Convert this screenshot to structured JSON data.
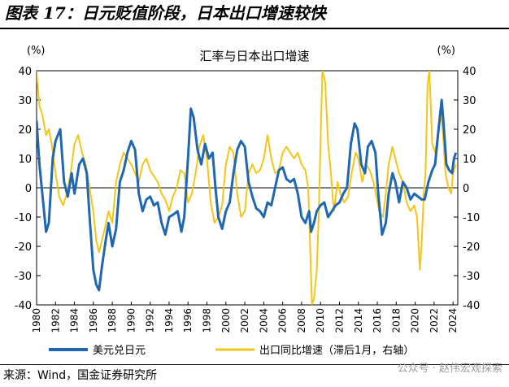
{
  "figure_title": "图表 17：日元贬值阶段，日本出口增速较快",
  "source": "来源：Wind，国金证券研究所",
  "watermark": "公众号 · 赵伟宏观探索",
  "chart_data": {
    "type": "line",
    "title": "汇率与日本出口增速",
    "y_left_unit": "(%)",
    "y_right_unit": "(%)",
    "ylim": [
      -40,
      40
    ],
    "yticks": [
      -40,
      -30,
      -20,
      -10,
      0,
      10,
      20,
      30,
      40
    ],
    "xlim": [
      1980,
      2024.5
    ],
    "xticks": [
      "1980",
      "1982",
      "1984",
      "1986",
      "1988",
      "1990",
      "1992",
      "1994",
      "1996",
      "1998",
      "2000",
      "2002",
      "2004",
      "2006",
      "2008",
      "2010",
      "2012",
      "2014",
      "2016",
      "2018",
      "2020",
      "2022",
      "2024"
    ],
    "legend_position": "bottom",
    "grid": false,
    "series": [
      {
        "name": "美元兑日元",
        "axis": "left",
        "color": "#1f66b3",
        "points": [
          [
            1980.0,
            23
          ],
          [
            1980.3,
            8
          ],
          [
            1980.7,
            -5
          ],
          [
            1981.0,
            -15
          ],
          [
            1981.3,
            -12
          ],
          [
            1981.7,
            10
          ],
          [
            1982.0,
            16
          ],
          [
            1982.5,
            20
          ],
          [
            1982.9,
            2
          ],
          [
            1983.3,
            -3
          ],
          [
            1983.7,
            5
          ],
          [
            1984.0,
            -2
          ],
          [
            1984.5,
            8
          ],
          [
            1984.9,
            10
          ],
          [
            1985.3,
            5
          ],
          [
            1985.6,
            -10
          ],
          [
            1986.0,
            -28
          ],
          [
            1986.3,
            -33
          ],
          [
            1986.6,
            -35
          ],
          [
            1986.9,
            -27
          ],
          [
            1987.3,
            -18
          ],
          [
            1987.6,
            -12
          ],
          [
            1988.0,
            -20
          ],
          [
            1988.4,
            -14
          ],
          [
            1988.8,
            2
          ],
          [
            1989.2,
            6
          ],
          [
            1989.6,
            12
          ],
          [
            1990.0,
            16
          ],
          [
            1990.4,
            13
          ],
          [
            1990.8,
            -2
          ],
          [
            1991.2,
            -8
          ],
          [
            1991.6,
            -4
          ],
          [
            1992.0,
            -3
          ],
          [
            1992.4,
            -6
          ],
          [
            1992.8,
            -5
          ],
          [
            1993.2,
            -12
          ],
          [
            1993.6,
            -16
          ],
          [
            1994.0,
            -10
          ],
          [
            1994.5,
            -9
          ],
          [
            1994.9,
            -8
          ],
          [
            1995.3,
            -15
          ],
          [
            1995.6,
            -10
          ],
          [
            1996.0,
            10
          ],
          [
            1996.3,
            27
          ],
          [
            1996.6,
            24
          ],
          [
            1997.0,
            13
          ],
          [
            1997.4,
            8
          ],
          [
            1997.8,
            15
          ],
          [
            1998.2,
            10
          ],
          [
            1998.6,
            12
          ],
          [
            1998.9,
            0
          ],
          [
            1999.2,
            -10
          ],
          [
            1999.6,
            -14
          ],
          [
            2000.0,
            -8
          ],
          [
            2000.4,
            -5
          ],
          [
            2000.8,
            5
          ],
          [
            2001.2,
            13
          ],
          [
            2001.6,
            16
          ],
          [
            2002.0,
            14
          ],
          [
            2002.4,
            2
          ],
          [
            2002.8,
            -3
          ],
          [
            2003.2,
            -7
          ],
          [
            2003.6,
            -8
          ],
          [
            2004.0,
            -10
          ],
          [
            2004.4,
            -5
          ],
          [
            2004.8,
            -6
          ],
          [
            2005.2,
            0
          ],
          [
            2005.6,
            6
          ],
          [
            2006.0,
            7
          ],
          [
            2006.4,
            3
          ],
          [
            2006.8,
            2
          ],
          [
            2007.2,
            3
          ],
          [
            2007.6,
            -2
          ],
          [
            2008.0,
            -10
          ],
          [
            2008.4,
            -12
          ],
          [
            2008.8,
            -8
          ],
          [
            2009.0,
            -15
          ],
          [
            2009.3,
            -12
          ],
          [
            2009.6,
            -8
          ],
          [
            2010.0,
            -6
          ],
          [
            2010.4,
            -5
          ],
          [
            2010.8,
            -10
          ],
          [
            2011.2,
            -8
          ],
          [
            2011.6,
            -6
          ],
          [
            2012.0,
            -5
          ],
          [
            2012.4,
            -2
          ],
          [
            2012.8,
            0
          ],
          [
            2013.2,
            15
          ],
          [
            2013.6,
            22
          ],
          [
            2013.9,
            20
          ],
          [
            2014.3,
            8
          ],
          [
            2014.7,
            5
          ],
          [
            2015.0,
            14
          ],
          [
            2015.4,
            16
          ],
          [
            2015.8,
            12
          ],
          [
            2016.1,
            -2
          ],
          [
            2016.5,
            -16
          ],
          [
            2016.9,
            -12
          ],
          [
            2017.2,
            -2
          ],
          [
            2017.6,
            5
          ],
          [
            2017.9,
            2
          ],
          [
            2018.3,
            -5
          ],
          [
            2018.7,
            2
          ],
          [
            2019.1,
            0
          ],
          [
            2019.5,
            -4
          ],
          [
            2019.9,
            -2
          ],
          [
            2020.3,
            -3
          ],
          [
            2020.7,
            -4
          ],
          [
            2021.0,
            -4
          ],
          [
            2021.4,
            2
          ],
          [
            2021.8,
            6
          ],
          [
            2022.1,
            8
          ],
          [
            2022.4,
            18
          ],
          [
            2022.8,
            30
          ],
          [
            2023.0,
            22
          ],
          [
            2023.3,
            8
          ],
          [
            2023.6,
            6
          ],
          [
            2023.9,
            5
          ],
          [
            2024.1,
            10
          ],
          [
            2024.3,
            12
          ]
        ]
      },
      {
        "name": "出口同比增速（滞后1月，右轴）",
        "axis": "right",
        "color": "#f5c518",
        "points": [
          [
            1980.0,
            40
          ],
          [
            1980.3,
            28
          ],
          [
            1980.6,
            25
          ],
          [
            1981.0,
            18
          ],
          [
            1981.3,
            20
          ],
          [
            1981.6,
            15
          ],
          [
            1982.0,
            5
          ],
          [
            1982.4,
            -3
          ],
          [
            1982.8,
            -6
          ],
          [
            1983.2,
            -2
          ],
          [
            1983.6,
            5
          ],
          [
            1984.0,
            15
          ],
          [
            1984.4,
            18
          ],
          [
            1984.8,
            12
          ],
          [
            1985.2,
            8
          ],
          [
            1985.6,
            0
          ],
          [
            1986.0,
            -8
          ],
          [
            1986.3,
            -18
          ],
          [
            1986.6,
            -22
          ],
          [
            1986.9,
            -18
          ],
          [
            1987.2,
            -14
          ],
          [
            1987.6,
            -8
          ],
          [
            1988.0,
            -12
          ],
          [
            1988.4,
            2
          ],
          [
            1988.8,
            8
          ],
          [
            1989.2,
            12
          ],
          [
            1989.6,
            10
          ],
          [
            1990.0,
            8
          ],
          [
            1990.4,
            5
          ],
          [
            1990.8,
            2
          ],
          [
            1991.2,
            8
          ],
          [
            1991.6,
            10
          ],
          [
            1992.0,
            6
          ],
          [
            1992.4,
            4
          ],
          [
            1992.8,
            2
          ],
          [
            1993.2,
            -2
          ],
          [
            1993.6,
            -4
          ],
          [
            1994.0,
            -8
          ],
          [
            1994.4,
            -3
          ],
          [
            1994.8,
            0
          ],
          [
            1995.2,
            6
          ],
          [
            1995.6,
            5
          ],
          [
            1996.0,
            -5
          ],
          [
            1996.4,
            -2
          ],
          [
            1996.8,
            5
          ],
          [
            1997.2,
            14
          ],
          [
            1997.6,
            18
          ],
          [
            1998.0,
            10
          ],
          [
            1998.4,
            -5
          ],
          [
            1998.8,
            -12
          ],
          [
            1999.2,
            -10
          ],
          [
            1999.6,
            -6
          ],
          [
            2000.0,
            8
          ],
          [
            2000.4,
            14
          ],
          [
            2000.8,
            12
          ],
          [
            2001.2,
            -2
          ],
          [
            2001.6,
            -10
          ],
          [
            2002.0,
            -8
          ],
          [
            2002.4,
            5
          ],
          [
            2002.8,
            8
          ],
          [
            2003.2,
            5
          ],
          [
            2003.6,
            6
          ],
          [
            2004.0,
            10
          ],
          [
            2004.4,
            18
          ],
          [
            2004.8,
            10
          ],
          [
            2005.2,
            5
          ],
          [
            2005.6,
            6
          ],
          [
            2006.0,
            12
          ],
          [
            2006.4,
            14
          ],
          [
            2006.8,
            12
          ],
          [
            2007.2,
            10
          ],
          [
            2007.6,
            12
          ],
          [
            2008.0,
            8
          ],
          [
            2008.4,
            6
          ],
          [
            2008.7,
            0
          ],
          [
            2008.9,
            -20
          ],
          [
            2009.1,
            -40
          ],
          [
            2009.3,
            -38
          ],
          [
            2009.6,
            -28
          ],
          [
            2009.8,
            -10
          ],
          [
            2010.0,
            15
          ],
          [
            2010.2,
            40
          ],
          [
            2010.5,
            36
          ],
          [
            2010.8,
            15
          ],
          [
            2011.1,
            5
          ],
          [
            2011.4,
            -8
          ],
          [
            2011.8,
            2
          ],
          [
            2012.1,
            -2
          ],
          [
            2012.5,
            -5
          ],
          [
            2012.9,
            -3
          ],
          [
            2013.3,
            5
          ],
          [
            2013.7,
            12
          ],
          [
            2014.0,
            10
          ],
          [
            2014.4,
            2
          ],
          [
            2014.8,
            8
          ],
          [
            2015.2,
            6
          ],
          [
            2015.6,
            2
          ],
          [
            2015.9,
            -3
          ],
          [
            2016.2,
            -8
          ],
          [
            2016.6,
            -10
          ],
          [
            2016.9,
            -2
          ],
          [
            2017.2,
            8
          ],
          [
            2017.6,
            14
          ],
          [
            2017.9,
            10
          ],
          [
            2018.3,
            5
          ],
          [
            2018.7,
            2
          ],
          [
            2019.1,
            -5
          ],
          [
            2019.5,
            -8
          ],
          [
            2019.9,
            -6
          ],
          [
            2020.2,
            -10
          ],
          [
            2020.5,
            -28
          ],
          [
            2020.7,
            -18
          ],
          [
            2020.9,
            -2
          ],
          [
            2021.1,
            5
          ],
          [
            2021.3,
            35
          ],
          [
            2021.5,
            40
          ],
          [
            2021.8,
            15
          ],
          [
            2022.1,
            12
          ],
          [
            2022.4,
            18
          ],
          [
            2022.7,
            25
          ],
          [
            2022.9,
            20
          ],
          [
            2023.2,
            5
          ],
          [
            2023.5,
            0
          ],
          [
            2023.8,
            -2
          ],
          [
            2024.0,
            5
          ],
          [
            2024.3,
            8
          ]
        ]
      }
    ]
  }
}
